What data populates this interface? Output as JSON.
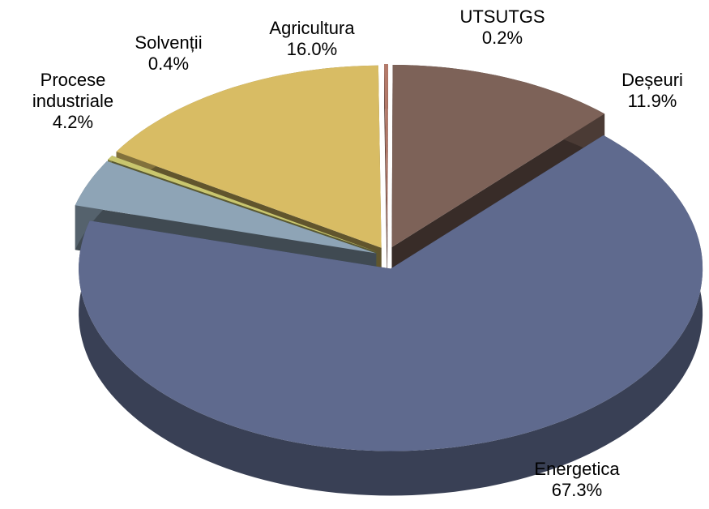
{
  "chart_data": {
    "type": "pie3d",
    "categories": [
      "Energetica",
      "Procese industriale",
      "Solvenții",
      "Agricultura",
      "UTSUTGS",
      "Deșeuri"
    ],
    "values": [
      67.3,
      4.2,
      0.4,
      16.0,
      0.2,
      11.9
    ],
    "value_labels": [
      "67.3%",
      "4.2%",
      "0.4%",
      "16.0%",
      "0.2%",
      "11.9%"
    ],
    "colors": [
      "#5f6a8e",
      "#8ea4b6",
      "#c9c66e",
      "#d8bc64",
      "#b47a6a",
      "#7d6258"
    ]
  }
}
